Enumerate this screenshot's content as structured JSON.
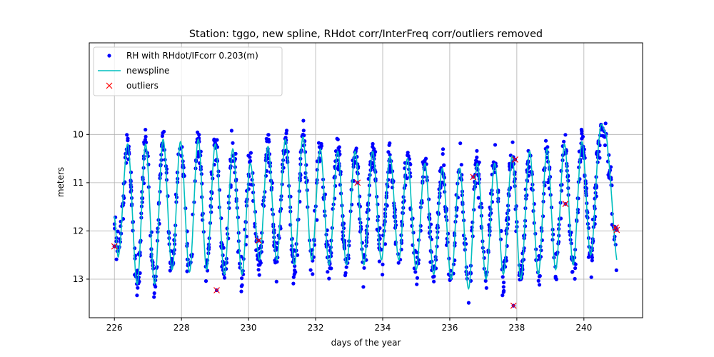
{
  "chart_data": {
    "type": "scatter",
    "title": "Station: tggo, new spline, RHdot corr/InterFreq corr/outliers removed",
    "xlabel": "days of the year",
    "ylabel": "meters",
    "xlim": [
      225.25,
      241.75
    ],
    "ylim": [
      13.8,
      8.1
    ],
    "y_inverted": true,
    "grid": true,
    "legend_position": "top-left",
    "x_ticks": [
      226,
      228,
      230,
      232,
      234,
      236,
      238,
      240
    ],
    "y_ticks": [
      10,
      11,
      12,
      13
    ],
    "series": [
      {
        "name": "RH with RHdot/IFcorr 0.203(m)",
        "kind": "points",
        "marker": "dot",
        "color": "#0000ff",
        "description": "dense scatter following the spline with about 0.2 m scatter; roughly 95 points per day",
        "points_per_day": 95,
        "noise_m": 0.2
      },
      {
        "name": "newspline",
        "kind": "line",
        "color": "#00bfbf",
        "x": [
          226.0,
          226.13,
          226.4,
          226.68,
          226.93,
          227.2,
          227.45,
          227.72,
          227.97,
          228.24,
          228.5,
          228.75,
          229.01,
          229.28,
          229.53,
          229.8,
          230.05,
          230.33,
          230.58,
          230.84,
          231.1,
          231.37,
          231.62,
          231.88,
          232.14,
          232.4,
          232.66,
          232.92,
          233.18,
          233.44,
          233.7,
          233.96,
          234.22,
          234.48,
          234.74,
          235.0,
          235.26,
          235.52,
          235.78,
          236.04,
          236.3,
          236.56,
          236.82,
          237.08,
          237.34,
          237.6,
          237.86,
          238.12,
          238.38,
          238.64,
          238.9,
          239.16,
          239.42,
          239.68,
          239.94,
          240.2,
          240.46,
          240.6,
          240.72,
          240.98
        ],
        "y": [
          11.7,
          12.5,
          10.2,
          13.1,
          10.2,
          13.1,
          10.1,
          12.8,
          10.15,
          12.85,
          10.1,
          12.8,
          10.2,
          12.9,
          10.3,
          12.9,
          10.6,
          12.6,
          10.25,
          12.6,
          10.1,
          12.7,
          10.05,
          12.6,
          10.3,
          12.7,
          10.35,
          12.7,
          10.35,
          12.7,
          10.35,
          12.6,
          10.45,
          12.6,
          10.5,
          12.8,
          10.6,
          12.9,
          10.7,
          13.0,
          10.7,
          13.2,
          10.6,
          13.0,
          10.6,
          12.9,
          10.45,
          13.0,
          10.35,
          12.9,
          10.3,
          12.8,
          10.2,
          12.7,
          10.15,
          12.5,
          10.05,
          9.9,
          10.4,
          12.6
        ]
      },
      {
        "name": "outliers",
        "kind": "points",
        "marker": "x",
        "color": "#ff0000",
        "x": [
          226.0,
          229.05,
          230.3,
          233.25,
          236.7,
          237.9,
          237.95,
          239.45,
          240.95,
          240.98
        ],
        "y": [
          12.32,
          13.23,
          12.2,
          11.0,
          10.88,
          13.55,
          10.52,
          11.44,
          11.93,
          11.98
        ]
      }
    ]
  }
}
